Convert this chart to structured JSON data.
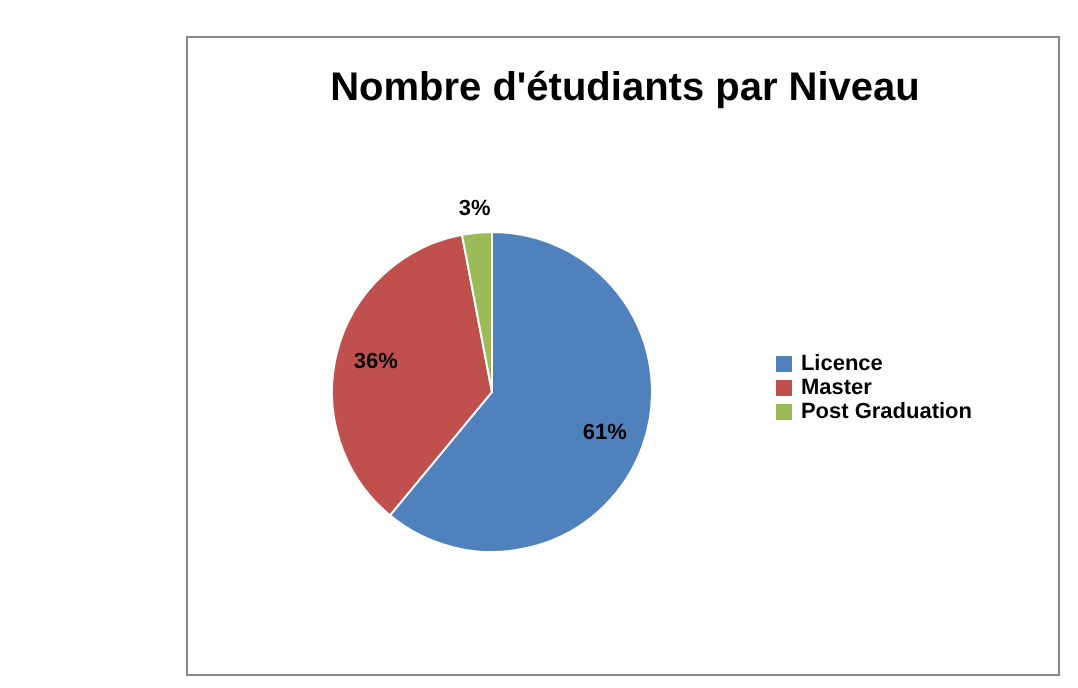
{
  "chart_data": {
    "type": "pie",
    "title": "Nombre d'étudiants par Niveau",
    "categories": [
      "Licence",
      "Master",
      "Post Graduation"
    ],
    "values": [
      61,
      36,
      3
    ],
    "colors": [
      "#4f81bd",
      "#c0504d",
      "#9bbb59"
    ],
    "value_labels": [
      "61%",
      "36%",
      "3%"
    ],
    "legend": "right"
  }
}
